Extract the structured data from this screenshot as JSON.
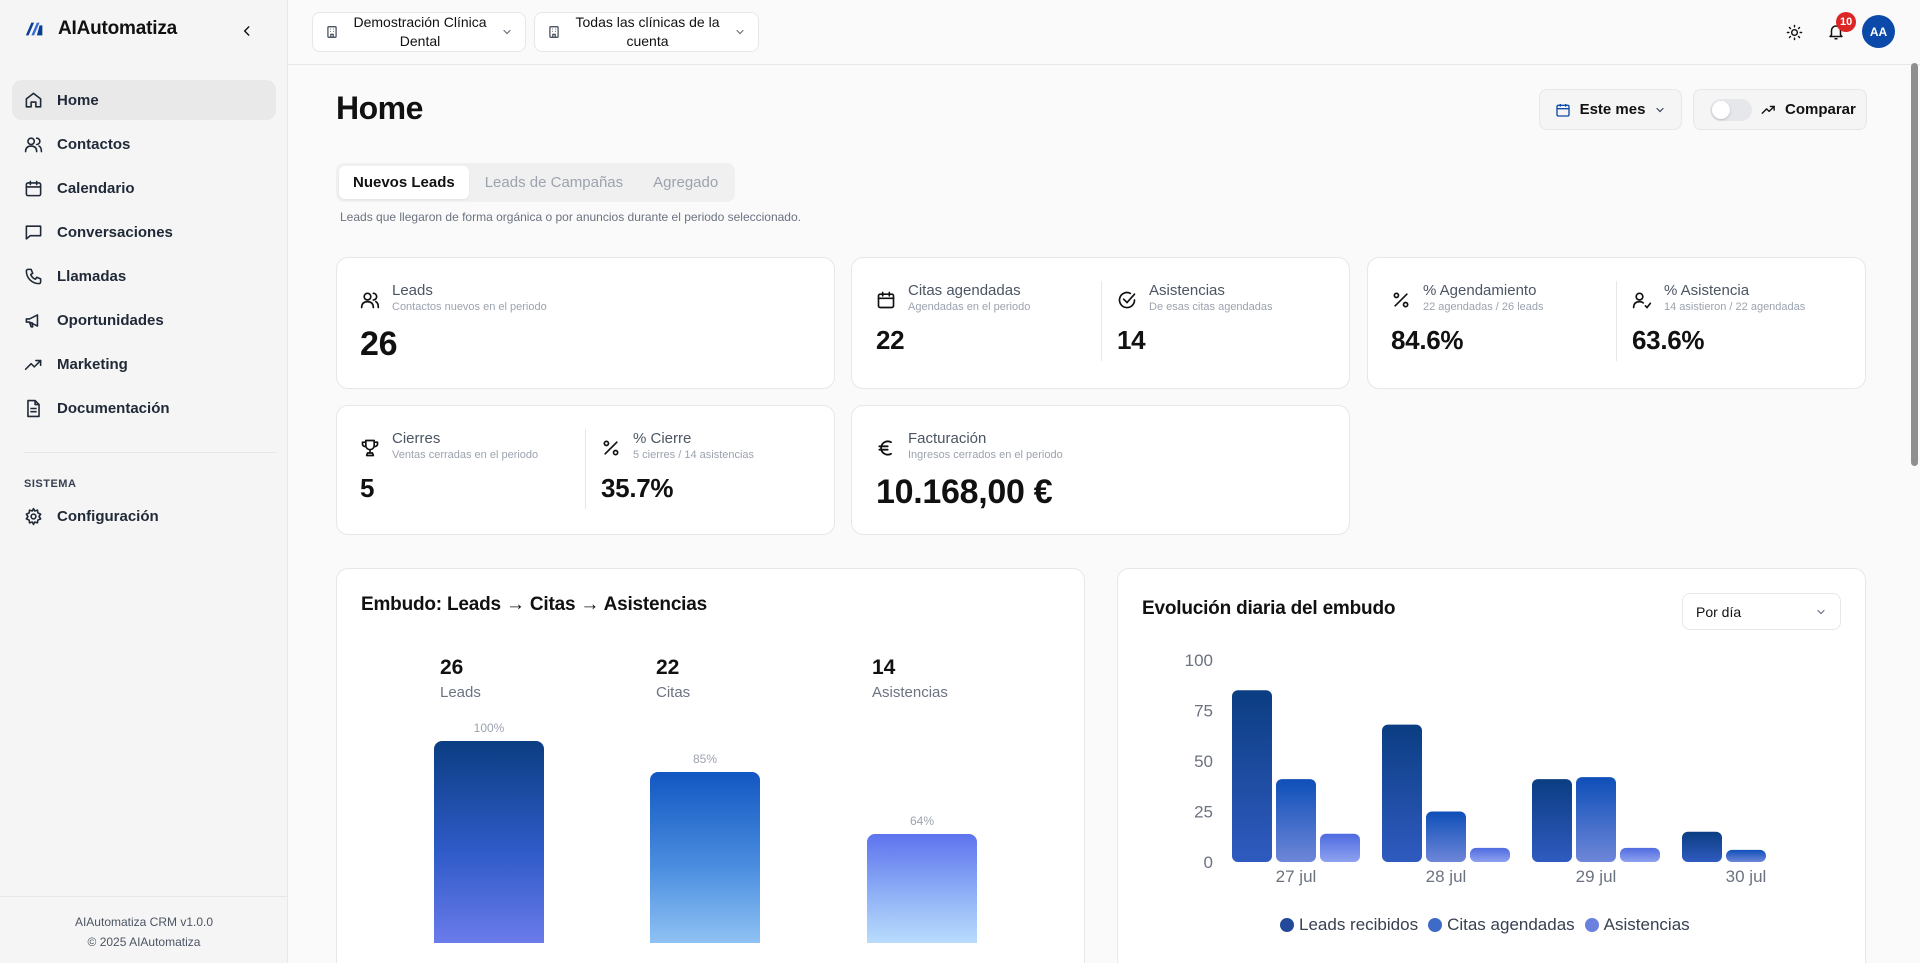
{
  "app": {
    "name": "AIAutomatiza",
    "footer_line1": "AIAutomatiza CRM v1.0.0",
    "footer_line2": "© 2025 AIAutomatiza"
  },
  "sidebar": {
    "items": [
      {
        "label": "Home",
        "icon": "home-icon"
      },
      {
        "label": "Contactos",
        "icon": "users-icon"
      },
      {
        "label": "Calendario",
        "icon": "calendar-icon"
      },
      {
        "label": "Conversaciones",
        "icon": "message-icon"
      },
      {
        "label": "Llamadas",
        "icon": "phone-icon"
      },
      {
        "label": "Oportunidades",
        "icon": "megaphone-icon"
      },
      {
        "label": "Marketing",
        "icon": "trending-up-icon"
      },
      {
        "label": "Documentación",
        "icon": "document-icon"
      }
    ],
    "section_label": "SISTEMA",
    "system_items": [
      {
        "label": "Configuración",
        "icon": "gear-icon"
      }
    ]
  },
  "topbar": {
    "clinic_selector": "Demostración Clínica Dental",
    "account_selector": "Todas las clínicas de la cuenta",
    "notifications_count": "10",
    "avatar_initials": "AA"
  },
  "page": {
    "title": "Home",
    "period_button": "Este mes",
    "compare_button": "Comparar",
    "tabs": [
      "Nuevos Leads",
      "Leads de Campañas",
      "Agregado"
    ],
    "active_tab": 0,
    "tabs_description": "Leads que llegaron de forma orgánica o por anuncios durante el periodo seleccionado."
  },
  "metrics": {
    "leads": {
      "label": "Leads",
      "sub": "Contactos nuevos en el periodo",
      "value": "26"
    },
    "citas": {
      "label": "Citas agendadas",
      "sub": "Agendadas en el periodo",
      "value": "22"
    },
    "asistencias": {
      "label": "Asistencias",
      "sub": "De esas citas agendadas",
      "value": "14"
    },
    "pct_agendamiento": {
      "label": "% Agendamiento",
      "sub": "22 agendadas / 26 leads",
      "value": "84.6%"
    },
    "pct_asistencia": {
      "label": "% Asistencia",
      "sub": "14 asistieron / 22 agendadas",
      "value": "63.6%"
    },
    "cierres": {
      "label": "Cierres",
      "sub": "Ventas cerradas en el periodo",
      "value": "5"
    },
    "pct_cierre": {
      "label": "% Cierre",
      "sub": "5 cierres / 14 asistencias",
      "value": "35.7%"
    },
    "facturacion": {
      "label": "Facturación",
      "sub": "Ingresos cerrados en el periodo",
      "value": "10.168,00 €"
    }
  },
  "funnel": {
    "title": "Embudo: Leads → Citas → Asistencias",
    "stages": [
      {
        "value": "26",
        "label": "Leads",
        "pct": "100%",
        "fraction": 1.0
      },
      {
        "value": "22",
        "label": "Citas",
        "pct": "85%",
        "fraction": 0.846
      },
      {
        "value": "14",
        "label": "Asistencias",
        "pct": "64%",
        "fraction": 0.538
      }
    ]
  },
  "daily": {
    "title": "Evolución diaria del embudo",
    "dropdown": "Por día"
  },
  "chart_data": {
    "type": "bar",
    "categories": [
      "27 jul",
      "28 jul",
      "29 jul",
      "30 jul"
    ],
    "series": [
      {
        "name": "Leads recibidos",
        "values": [
          85,
          68,
          41,
          15
        ],
        "color": "#0b3d91"
      },
      {
        "name": "Citas agendadas",
        "values": [
          41,
          25,
          42,
          6
        ],
        "color": "#1e56c3"
      },
      {
        "name": "Asistencias",
        "values": [
          14,
          7,
          7,
          0
        ],
        "color": "#6278e0"
      }
    ],
    "yticks": [
      "0",
      "25",
      "50",
      "75",
      "100"
    ],
    "ylim": [
      0,
      100
    ],
    "legend": "bottom",
    "grid": false
  }
}
